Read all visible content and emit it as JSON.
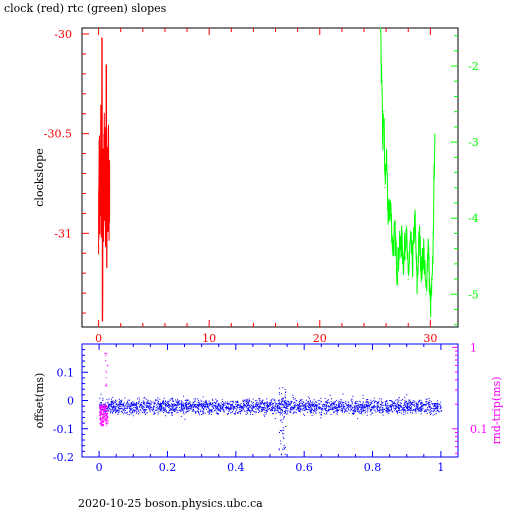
{
  "title": "clock (red) rtc (green) slopes",
  "footer": "2020-10-25  boson.physics.ubc.ca",
  "colors": {
    "red": "#ff0000",
    "green": "#00ff00",
    "blue": "#0000ff",
    "magenta": "#ff00ff",
    "black": "#000000"
  },
  "chart_data": [
    {
      "type": "line",
      "title": "clock (red) rtc (green) slopes",
      "ylabel": "clockslope",
      "y2label": "",
      "xlim": [
        -1.5,
        32.5
      ],
      "ylim": [
        -31.47,
        -29.97
      ],
      "y2lim": [
        -5.43,
        -1.5
      ],
      "x_ticks": [
        "0",
        "10",
        "20",
        "30"
      ],
      "y_ticks": [
        "-30",
        "-30.5",
        "-31"
      ],
      "y2_ticks": [
        "-2",
        "-3",
        "-4",
        "-5"
      ],
      "series": [
        {
          "name": "clock (red)",
          "axis": "left",
          "color": "#ff0000",
          "x": [
            0.0,
            0.05,
            0.1,
            0.15,
            0.2,
            0.25,
            0.3,
            0.35,
            0.4,
            0.45,
            0.5,
            0.55,
            0.6,
            0.65,
            0.7,
            0.75,
            0.8,
            0.85,
            0.9,
            0.95,
            1.0
          ],
          "y": [
            -30.93,
            -30.62,
            -30.85,
            -30.78,
            -30.5,
            -30.9,
            -30.03,
            -31.42,
            -30.58,
            -30.95,
            -30.55,
            -30.85,
            -30.6,
            -30.92,
            -30.3,
            -31.0,
            -30.7,
            -30.82,
            -30.62,
            -30.88,
            -30.78
          ]
        },
        {
          "name": "rtc (green)",
          "axis": "right",
          "color": "#00ff00",
          "x": [
            25.5,
            25.6,
            25.7,
            25.8,
            25.9,
            26.0,
            26.2,
            26.4,
            26.6,
            26.8,
            27.0,
            27.2,
            27.4,
            27.6,
            27.8,
            28.0,
            28.2,
            28.4,
            28.6,
            28.8,
            29.0,
            29.2,
            29.4,
            29.6,
            29.8,
            30.0,
            30.2,
            30.4
          ],
          "y": [
            -1.5,
            -2.3,
            -3.0,
            -2.6,
            -3.6,
            -3.2,
            -4.0,
            -3.8,
            -4.4,
            -4.2,
            -4.7,
            -4.4,
            -4.3,
            -4.6,
            -4.1,
            -4.8,
            -4.3,
            -4.6,
            -4.0,
            -4.9,
            -4.2,
            -4.7,
            -4.4,
            -5.0,
            -4.3,
            -5.2,
            -4.8,
            -2.9
          ]
        }
      ]
    },
    {
      "type": "scatter",
      "ylabel": "offset(ms)",
      "y2label": "rnd-trip(ms)",
      "xlim": [
        -0.05,
        1.05
      ],
      "ylim": [
        -0.2,
        0.2
      ],
      "y2lim_log": [
        0.045,
        1.1
      ],
      "x_ticks": [
        "0",
        "0.2",
        "0.4",
        "0.6",
        "0.8",
        "1"
      ],
      "y_ticks": [
        "0.1",
        "0",
        "-0.1",
        "-0.2"
      ],
      "y2_ticks": [
        "1",
        "0.1"
      ],
      "series": [
        {
          "name": "offset",
          "axis": "left",
          "color": "#0000ff",
          "baseline": -0.02,
          "spread": 0.025,
          "x_range": [
            0,
            1
          ]
        },
        {
          "name": "rnd-trip",
          "axis": "right",
          "color": "#ff00ff",
          "x_range": [
            0,
            0.025
          ],
          "approx_range": [
            0.11,
            0.2
          ]
        }
      ],
      "annotations": [
        {
          "x": 0.535,
          "y_range": [
            -0.2,
            0.05
          ],
          "note": "vertical spike of offsets"
        }
      ]
    }
  ]
}
